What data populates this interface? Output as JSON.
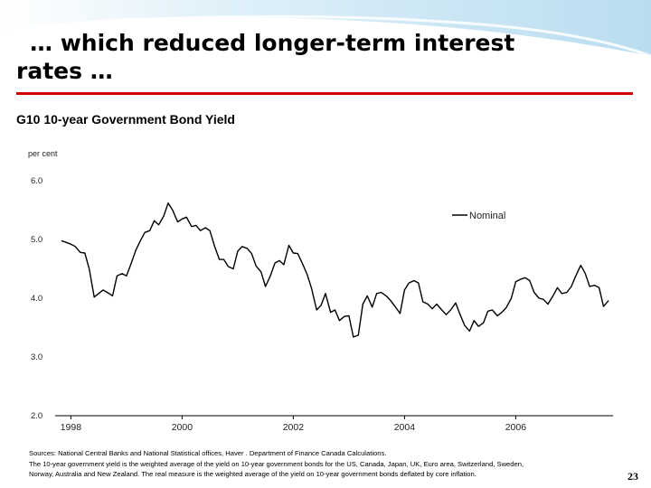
{
  "slide": {
    "title_line1": "… which reduced longer-term interest",
    "title_line2": "rates …",
    "page_number": "23",
    "accent_color": "#cc0000",
    "swoosh_color": "#c5e3f3"
  },
  "sources": {
    "line1": "Sources: National Central Banks and National Statistical offices, Haver . Department of Finance Canada Calculations.",
    "line2": "The 10-year government yield is the weighted average of the yield on 10-year government bonds for the US, Canada, Japan, UK, Euro area, Switzerland, Sweden,",
    "line3": "Norway, Australia and New Zealand. The real measure is the weighted average of the yield on 10-year government bonds deflated by core inflation."
  },
  "chart_data": {
    "type": "line",
    "title": "G10 10-year Government Bond Yield",
    "ylabel": "per cent",
    "xlabel": "",
    "ylim": [
      2.0,
      6.0
    ],
    "xlim": [
      1997.75,
      2007.75
    ],
    "y_ticks": [
      "6.0",
      "5.0",
      "4.0",
      "3.0",
      "2.0"
    ],
    "x_ticks": [
      "1998",
      "2000",
      "2002",
      "2004",
      "2006"
    ],
    "legend": {
      "position": "top-right"
    },
    "series": [
      {
        "name": "Nominal",
        "color": "#000000",
        "x": [
          1997.83,
          1997.92,
          1998.0,
          1998.08,
          1998.17,
          1998.25,
          1998.33,
          1998.42,
          1998.5,
          1998.58,
          1998.67,
          1998.75,
          1998.83,
          1998.92,
          1999.0,
          1999.08,
          1999.17,
          1999.25,
          1999.33,
          1999.42,
          1999.5,
          1999.58,
          1999.67,
          1999.75,
          1999.83,
          1999.92,
          2000.0,
          2000.08,
          2000.17,
          2000.25,
          2000.33,
          2000.42,
          2000.5,
          2000.58,
          2000.67,
          2000.75,
          2000.83,
          2000.92,
          2001.0,
          2001.08,
          2001.17,
          2001.25,
          2001.33,
          2001.42,
          2001.5,
          2001.58,
          2001.67,
          2001.75,
          2001.83,
          2001.92,
          2002.0,
          2002.08,
          2002.17,
          2002.25,
          2002.33,
          2002.42,
          2002.5,
          2002.58,
          2002.67,
          2002.75,
          2002.83,
          2002.92,
          2003.0,
          2003.08,
          2003.17,
          2003.25,
          2003.33,
          2003.42,
          2003.5,
          2003.58,
          2003.67,
          2003.75,
          2003.83,
          2003.92,
          2004.0,
          2004.08,
          2004.17,
          2004.25,
          2004.33,
          2004.42,
          2004.5,
          2004.58,
          2004.67,
          2004.75,
          2004.83,
          2004.92,
          2005.0,
          2005.08,
          2005.17,
          2005.25,
          2005.33,
          2005.42,
          2005.5,
          2005.58,
          2005.67,
          2005.75,
          2005.83,
          2005.92,
          2006.0,
          2006.08,
          2006.17,
          2006.25,
          2006.33,
          2006.42,
          2006.5,
          2006.58,
          2006.67,
          2006.75,
          2006.83,
          2006.92,
          2007.0,
          2007.08,
          2007.17,
          2007.25,
          2007.33,
          2007.42,
          2007.5,
          2007.58,
          2007.67
        ],
        "values": [
          4.98,
          4.95,
          4.92,
          4.88,
          4.78,
          4.77,
          4.5,
          4.02,
          4.08,
          4.14,
          4.09,
          4.04,
          4.38,
          4.42,
          4.38,
          4.58,
          4.82,
          4.98,
          5.12,
          5.15,
          5.32,
          5.25,
          5.4,
          5.62,
          5.5,
          5.3,
          5.35,
          5.38,
          5.22,
          5.24,
          5.15,
          5.2,
          5.15,
          4.9,
          4.66,
          4.66,
          4.54,
          4.5,
          4.8,
          4.88,
          4.85,
          4.76,
          4.55,
          4.45,
          4.2,
          4.36,
          4.6,
          4.64,
          4.57,
          4.9,
          4.77,
          4.76,
          4.58,
          4.4,
          4.16,
          3.8,
          3.88,
          4.08,
          3.76,
          3.8,
          3.62,
          3.69,
          3.7,
          3.34,
          3.37,
          3.9,
          4.04,
          3.85,
          4.08,
          4.1,
          4.04,
          3.96,
          3.86,
          3.74,
          4.14,
          4.26,
          4.3,
          4.26,
          3.94,
          3.9,
          3.82,
          3.9,
          3.8,
          3.72,
          3.8,
          3.92,
          3.72,
          3.54,
          3.44,
          3.62,
          3.52,
          3.58,
          3.78,
          3.8,
          3.7,
          3.76,
          3.84,
          4.0,
          4.28,
          4.32,
          4.35,
          4.3,
          4.1,
          4.0,
          3.98,
          3.9,
          4.04,
          4.18,
          4.08,
          4.1,
          4.2,
          4.38,
          4.56,
          4.42,
          4.2,
          4.22,
          4.18,
          3.86,
          3.96
        ]
      }
    ]
  }
}
